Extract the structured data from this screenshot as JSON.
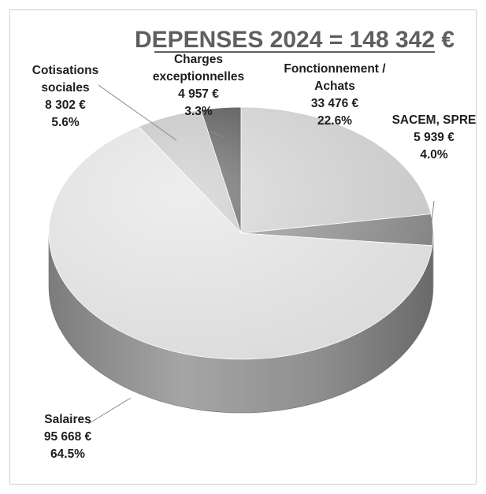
{
  "chart_data": {
    "type": "pie",
    "title": "DEPENSES 2024 = 148 342 €",
    "total": 148342,
    "slices": [
      {
        "name": "Fonctionnement / Achats",
        "name_lines": [
          "Fonctionnement /",
          "Achats"
        ],
        "value": 33476,
        "value_label": "33 476 €",
        "percent": 22.6,
        "percent_label": "22.6%",
        "color": "#c4c4c4"
      },
      {
        "name": "SACEM, SPRE",
        "name_lines": [
          "SACEM, SPRE"
        ],
        "value": 5939,
        "value_label": "5 939 €",
        "percent": 4.0,
        "percent_label": "4.0%",
        "color": "#7a7a7a"
      },
      {
        "name": "Salaires",
        "name_lines": [
          "Salaires"
        ],
        "value": 95668,
        "value_label": "95 668 €",
        "percent": 64.5,
        "percent_label": "64.5%",
        "color": "#d9d9d9"
      },
      {
        "name": "Cotisations sociales",
        "name_lines": [
          "Cotisations",
          "sociales"
        ],
        "value": 8302,
        "value_label": "8 302 €",
        "percent": 5.6,
        "percent_label": "5.6%",
        "color": "#b5b5b5"
      },
      {
        "name": "Charges exceptionnelles",
        "name_lines": [
          "Charges",
          "exceptionnelles"
        ],
        "value": 4957,
        "value_label": "4 957 €",
        "percent": 3.3,
        "percent_label": "3.3%",
        "color": "#2b2b2b"
      }
    ],
    "style": "3d-pie",
    "legend": "none"
  }
}
